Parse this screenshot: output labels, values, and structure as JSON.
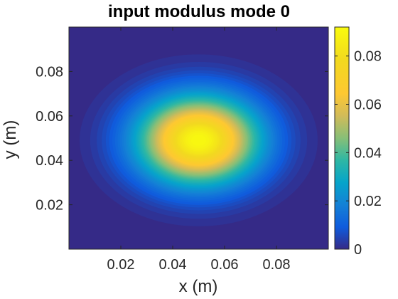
{
  "chart_data": {
    "type": "heatmap",
    "title": "input modulus mode 0",
    "xlabel": "x (m)",
    "ylabel": "y (m)",
    "xlim": [
      0,
      0.1
    ],
    "ylim": [
      0,
      0.1
    ],
    "x_ticks": [
      "0.02",
      "0.04",
      "0.06",
      "0.08"
    ],
    "y_ticks": [
      "0.02",
      "0.04",
      "0.06",
      "0.08"
    ],
    "colorbar": {
      "colormap": "parula",
      "range": [
        0,
        0.092
      ],
      "ticks": [
        "0",
        "0.02",
        "0.04",
        "0.06",
        "0.08"
      ]
    },
    "field": {
      "shape": "gaussian",
      "center": [
        0.05,
        0.049
      ],
      "peak": 0.092,
      "sigma_x": 0.016,
      "sigma_y": 0.0135,
      "background": 0
    }
  }
}
